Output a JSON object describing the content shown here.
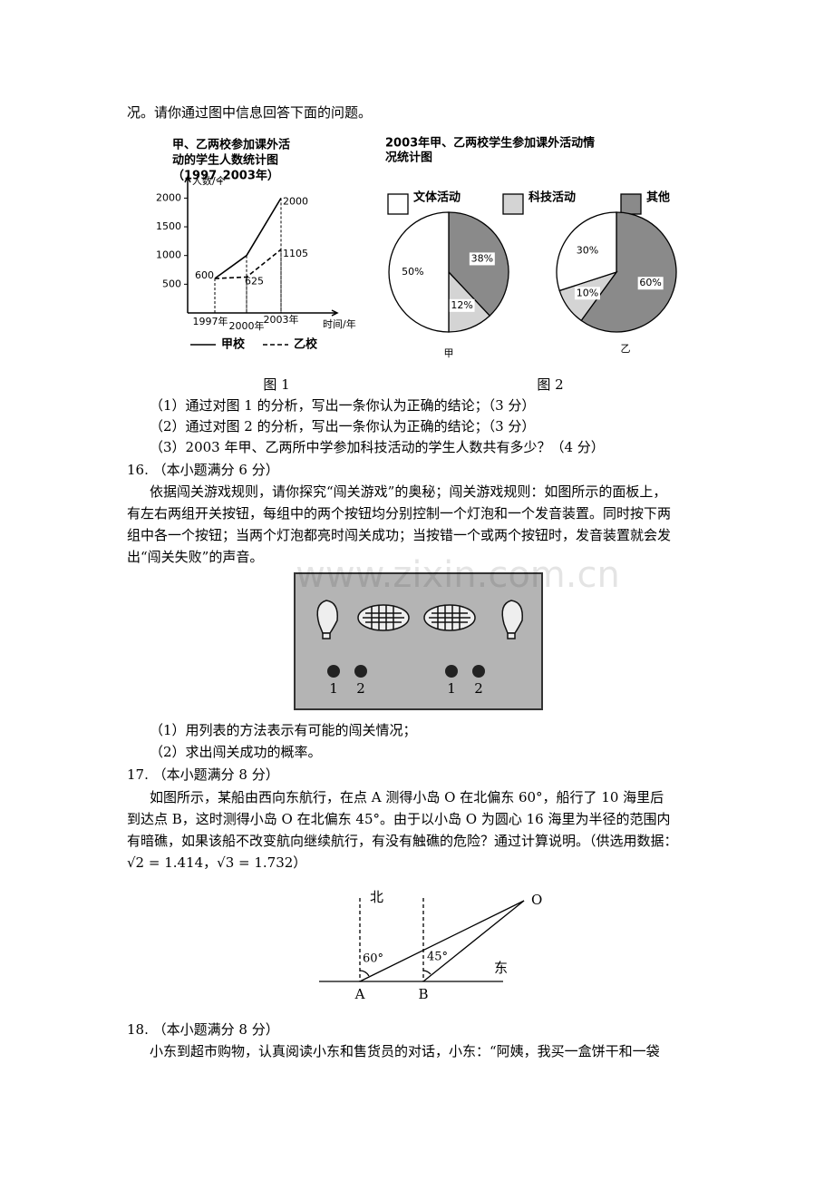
{
  "intro": "况。请你通过图中信息回答下面的问题。",
  "figure1": {
    "title_lines": [
      "甲、乙两校参加课外活",
      "动的学生人数统计图",
      "（1997_2003年）"
    ],
    "y_axis_label": "人数/个",
    "x_axis_label": "时间/年",
    "ylim": [
      0,
      2300
    ],
    "yticks": [
      500,
      1000,
      1500,
      2000
    ],
    "categories": [
      "1997年",
      "2000年",
      "2003年"
    ],
    "series": [
      {
        "name": "甲校",
        "values": [
          600,
          1000,
          2000
        ]
      },
      {
        "name": "乙校",
        "values": [
          600,
          625,
          1105
        ]
      }
    ],
    "caption": "图 1"
  },
  "figure2": {
    "type": "pie",
    "title_lines": [
      "2003年甲、乙两校学生参加课外活动情",
      "况统计图"
    ],
    "categories": [
      "文体活动",
      "科技活动",
      "其他"
    ],
    "colors": [
      "#ffffff",
      "#d4d4d4",
      "#8a8a8a"
    ],
    "pies": [
      {
        "name": "甲",
        "values": [
          50,
          12,
          38
        ],
        "value_labels": [
          "50%",
          "12%",
          "38%"
        ]
      },
      {
        "name": "乙",
        "values": [
          30,
          10,
          60
        ],
        "value_labels": [
          "30%",
          "10%",
          "60%"
        ]
      }
    ],
    "caption": "图 2"
  },
  "q15_parts": [
    "（1）通过对图 1 的分析，写出一条你认为正确的结论；（3 分）",
    "（2）通过对图 2 的分析，写出一条你认为正确的结论；（3 分）",
    "（3）2003 年甲、乙两所中学参加科技活动的学生人数共有多少？（4 分）"
  ],
  "q16": {
    "heading": "16. （本小题满分 6 分）",
    "lines": [
      "依据闯关游戏规则，请你探究“闯关游戏”的奥秘；闯关游戏规则：如图所示的面板上，",
      "有左右两组开关按钮，每组中的两个按钮均分别控制一个灯泡和一个发音装置。同时按下两",
      "组中各一个按钮；当两个灯泡都亮时闯关成功；当按错一个或两个按钮时，发音装置就会发",
      "出“闯关失败”的声音。"
    ],
    "buttons": [
      "1",
      "2",
      "1",
      "2"
    ],
    "parts": [
      "（1）用列表的方法表示有可能的闯关情况；",
      "（2）求出闯关成功的概率。"
    ]
  },
  "watermark": "www.zixin.com.cn",
  "q17": {
    "heading": "17. （本小题满分 8 分）",
    "lines": [
      "如图所示，某船由西向东航行，在点 A 测得小岛 O 在北偏东 60°，船行了 10 海里后",
      "到达点 B，这时测得小岛 O 在北偏东 45°。由于以小岛 O 为圆心 16 海里为半径的范围内",
      "有暗礁，如果该船不改变航向继续航行，有没有触礁的危险？通过计算说明。（供选用数据：",
      "√2 = 1.414，√3 = 1.732）"
    ],
    "diagram": {
      "north": "北",
      "east": "东",
      "island": "O",
      "angle_a": "60°",
      "angle_b": "45°",
      "point_a": "A",
      "point_b": "B"
    }
  },
  "q18": {
    "heading": "18. （本小题满分 8 分）",
    "lines": [
      "小东到超市购物，认真阅读小东和售货员的对话，小东：“阿姨，我买一盒饼干和一袋"
    ]
  }
}
